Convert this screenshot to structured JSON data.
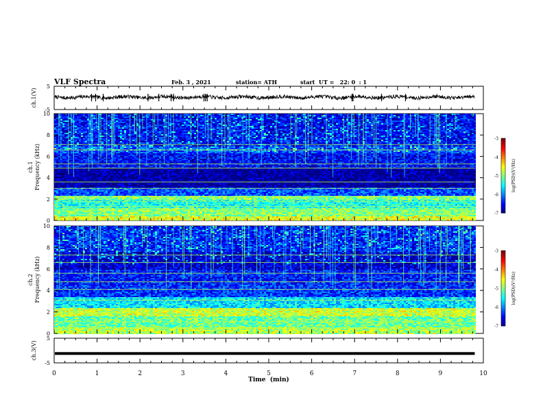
{
  "header": {
    "title": "VLF Spectra",
    "date": "Feb. 3 , 2021",
    "station": "station= ATH",
    "start": "start  UT =   22: 0  : 1"
  },
  "chart_data": [
    {
      "type": "line",
      "name": "ch1-waveform",
      "ylabel": "ch.1(V)",
      "yticks": [
        "5",
        "-5"
      ],
      "ylim": [
        -5,
        5
      ],
      "xlim": [
        0,
        10
      ],
      "trace_level": 0.3,
      "trace_end_min": 9.8
    },
    {
      "type": "heatmap",
      "name": "ch1-spectrogram",
      "ylabel": "ch.1\nFrequency (kHz)",
      "yticks": [
        "0",
        "2",
        "4",
        "6",
        "8",
        "10"
      ],
      "ylim": [
        0,
        10
      ],
      "xlim": [
        0,
        10
      ],
      "data_end_min": 9.8,
      "colorbar": {
        "label": "log(PSD)(V²/Hz)",
        "ticks": [
          "-3",
          "-4",
          "-5",
          "-6",
          "-7"
        ],
        "range": [
          -7,
          -3
        ]
      },
      "bands": [
        {
          "fmin": 0.0,
          "fmax": 0.5,
          "level": -4.6
        },
        {
          "fmin": 0.5,
          "fmax": 1.2,
          "level": -5.0
        },
        {
          "fmin": 1.2,
          "fmax": 2.0,
          "level": -5.4
        },
        {
          "fmin": 2.0,
          "fmax": 2.4,
          "level": -5.0
        },
        {
          "fmin": 2.4,
          "fmax": 3.2,
          "level": -6.2
        },
        {
          "fmin": 3.2,
          "fmax": 5.0,
          "level": -6.9
        },
        {
          "fmin": 5.0,
          "fmax": 6.4,
          "level": -6.5
        },
        {
          "fmin": 6.4,
          "fmax": 7.0,
          "level": -6.2
        },
        {
          "fmin": 7.0,
          "fmax": 10.0,
          "level": -6.5
        }
      ],
      "lines_khz": [
        0.6,
        0.9,
        1.3,
        1.8,
        2.2,
        3.0,
        3.6,
        4.9,
        5.3,
        6.6,
        7.1
      ]
    },
    {
      "type": "heatmap",
      "name": "ch2-spectrogram",
      "ylabel": "ch.2\nFrequency (kHz)",
      "yticks": [
        "0",
        "2",
        "4",
        "6",
        "8",
        "10"
      ],
      "ylim": [
        0,
        10
      ],
      "xlim": [
        0,
        10
      ],
      "data_end_min": 9.8,
      "colorbar": {
        "label": "log(PSD)(V²/Hz)",
        "ticks": [
          "-3",
          "-4",
          "-5",
          "-6",
          "-7"
        ],
        "range": [
          -7,
          -3
        ]
      },
      "bands": [
        {
          "fmin": 0.0,
          "fmax": 0.6,
          "level": -4.8
        },
        {
          "fmin": 0.6,
          "fmax": 1.6,
          "level": -5.1
        },
        {
          "fmin": 1.6,
          "fmax": 2.4,
          "level": -4.7
        },
        {
          "fmin": 2.4,
          "fmax": 3.4,
          "level": -5.6
        },
        {
          "fmin": 3.4,
          "fmax": 4.6,
          "level": -6.3
        },
        {
          "fmin": 4.6,
          "fmax": 6.0,
          "level": -6.4
        },
        {
          "fmin": 6.0,
          "fmax": 7.6,
          "level": -6.7
        },
        {
          "fmin": 7.6,
          "fmax": 10.0,
          "level": -6.4
        }
      ],
      "lines_khz": [
        0.5,
        1.1,
        1.9,
        2.2,
        3.1,
        4.1,
        4.8,
        5.6,
        6.6,
        7.3
      ]
    },
    {
      "type": "line",
      "name": "ch3-waveform",
      "ylabel": "ch.3(V)",
      "yticks": [
        "5",
        "-5"
      ],
      "ylim": [
        -5,
        5
      ],
      "xlim": [
        0,
        10
      ],
      "trace_level": -1.2,
      "trace_end_min": 9.8,
      "xlabel": "Time  (min)",
      "xticks": [
        "0",
        "1",
        "2",
        "3",
        "4",
        "5",
        "6",
        "7",
        "8",
        "9",
        "10"
      ]
    }
  ]
}
